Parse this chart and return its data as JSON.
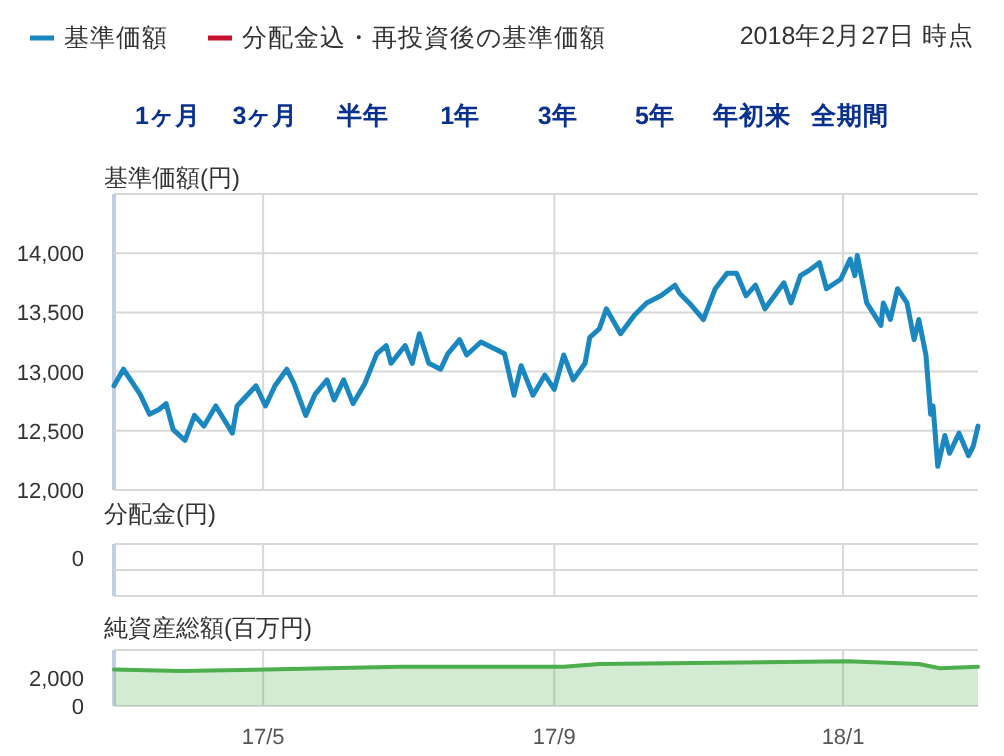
{
  "chart_data": [
    {
      "type": "line",
      "subtitle": "2018年2月27日 時点",
      "ylabel": "基準価額(円)",
      "legend": "top left",
      "grid": true,
      "tick_labels": "y",
      "marker": "none",
      "annotations": [
        "1ヶ月",
        "3ヶ月",
        "半年",
        "1年",
        "3年",
        "5年",
        "年初来",
        "全期間"
      ],
      "xlim": [
        "2017-02-27",
        "2018-02-27"
      ],
      "xticks": [
        {
          "value": "2017-05-01",
          "label": null
        },
        {
          "value": "2017-09-01",
          "label": null
        },
        {
          "value": "2018-01-01",
          "label": null
        }
      ],
      "ylim": [
        12000,
        14500
      ],
      "yticks": [
        {
          "value": 12000,
          "label": "12,000"
        },
        {
          "value": 12500,
          "label": "12,500"
        },
        {
          "value": 13000,
          "label": "13,000"
        },
        {
          "value": 13500,
          "label": "13,500"
        },
        {
          "value": 14000,
          "label": "14,000"
        }
      ],
      "series": [
        {
          "name": "基準価額",
          "color": "#1a87c0",
          "x": [
            "2017-02-27",
            "2017-03-03",
            "2017-03-10",
            "2017-03-14",
            "2017-03-18",
            "2017-03-21",
            "2017-03-24",
            "2017-03-29",
            "2017-04-02",
            "2017-04-06",
            "2017-04-11",
            "2017-04-18",
            "2017-04-20",
            "2017-04-28",
            "2017-05-02",
            "2017-05-06",
            "2017-05-11",
            "2017-05-14",
            "2017-05-19",
            "2017-05-23",
            "2017-05-28",
            "2017-05-31",
            "2017-06-04",
            "2017-06-08",
            "2017-06-13",
            "2017-06-18",
            "2017-06-22",
            "2017-06-24",
            "2017-06-30",
            "2017-07-03",
            "2017-07-06",
            "2017-07-10",
            "2017-07-15",
            "2017-07-18",
            "2017-07-23",
            "2017-07-26",
            "2017-08-01",
            "2017-08-07",
            "2017-08-11",
            "2017-08-15",
            "2017-08-18",
            "2017-08-23",
            "2017-08-28",
            "2017-09-01",
            "2017-09-05",
            "2017-09-09",
            "2017-09-14",
            "2017-09-16",
            "2017-09-20",
            "2017-09-23",
            "2017-09-29",
            "2017-10-05",
            "2017-10-10",
            "2017-10-16",
            "2017-10-22",
            "2017-10-24",
            "2017-10-28",
            "2017-11-03",
            "2017-11-08",
            "2017-11-13",
            "2017-11-17",
            "2017-11-21",
            "2017-11-25",
            "2017-11-29",
            "2017-12-07",
            "2017-12-10",
            "2017-12-14",
            "2017-12-18",
            "2017-12-22",
            "2017-12-25",
            "2017-12-31",
            "2018-01-04",
            "2018-01-06",
            "2018-01-07",
            "2018-01-11",
            "2018-01-17",
            "2018-01-18",
            "2018-01-21",
            "2018-01-24",
            "2018-01-28",
            "2018-01-31",
            "2018-02-02",
            "2018-02-05",
            "2018-02-07",
            "2018-02-08",
            "2018-02-10",
            "2018-02-13",
            "2018-02-15",
            "2018-02-19",
            "2018-02-23",
            "2018-02-25",
            "2018-02-27"
          ],
          "values": [
            12880,
            13020,
            12810,
            12640,
            12680,
            12730,
            12510,
            12420,
            12630,
            12540,
            12710,
            12480,
            12710,
            12880,
            12710,
            12880,
            13020,
            12900,
            12630,
            12810,
            12930,
            12760,
            12930,
            12730,
            12900,
            13150,
            13220,
            13070,
            13220,
            13070,
            13320,
            13070,
            13020,
            13150,
            13270,
            13140,
            13250,
            13190,
            13150,
            12800,
            13050,
            12800,
            12970,
            12850,
            13140,
            12930,
            13070,
            13290,
            13360,
            13530,
            13320,
            13480,
            13580,
            13640,
            13730,
            13660,
            13580,
            13440,
            13700,
            13830,
            13830,
            13640,
            13730,
            13530,
            13750,
            13580,
            13810,
            13860,
            13920,
            13700,
            13780,
            13950,
            13810,
            13980,
            13580,
            13390,
            13580,
            13440,
            13700,
            13580,
            13270,
            13440,
            13140,
            12640,
            12710,
            12200,
            12460,
            12310,
            12480,
            12290,
            12370,
            12540
          ]
        },
        {
          "name": "分配金込・再投資後の基準価額",
          "color": "#c8102e"
        }
      ]
    },
    {
      "type": "other",
      "ylabel": "分配金(円)",
      "annotations": [
        "0"
      ]
    },
    {
      "type": "area",
      "ylabel": "純資産総額(百万円)",
      "grid": "x",
      "marker": "none",
      "color": "#4cae4c",
      "xlim": [
        "2017-02-27",
        "2018-02-27"
      ],
      "xticks": [
        {
          "value": "2017-05-01",
          "label": "17/5"
        },
        {
          "value": "2017-09-01",
          "label": "17/9"
        },
        {
          "value": "2018-01-01",
          "label": "18/1"
        }
      ],
      "ylim": [
        0,
        4000
      ],
      "yticks": [
        {
          "value": 0,
          "label": "0"
        },
        {
          "value": 2000,
          "label": "2,000"
        }
      ],
      "x": [
        "2017-02-27",
        "2017-03-27",
        "2017-05-02",
        "2017-06-28",
        "2017-09-05",
        "2017-09-20",
        "2018-01-03",
        "2018-02-02",
        "2018-02-11",
        "2018-02-27"
      ],
      "values": [
        2600,
        2500,
        2600,
        2800,
        2800,
        3000,
        3200,
        3000,
        2700,
        2800
      ]
    }
  ]
}
